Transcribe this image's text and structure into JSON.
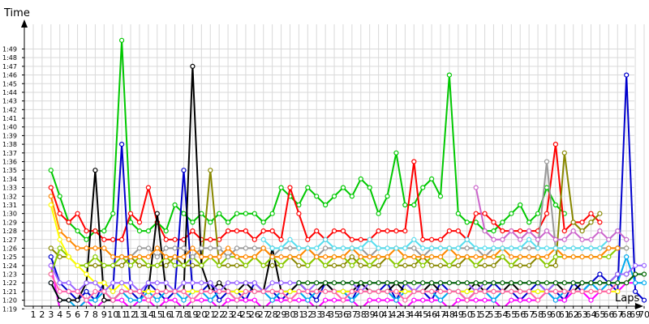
{
  "chart_data": {
    "type": "line",
    "ylabel": "Time",
    "xlabel": "Laps",
    "x": [
      1,
      2,
      3,
      4,
      5,
      6,
      7,
      8,
      9,
      10,
      11,
      12,
      13,
      14,
      15,
      16,
      17,
      18,
      19,
      20,
      21,
      22,
      23,
      24,
      25,
      26,
      27,
      28,
      29,
      30,
      31,
      32,
      33,
      34,
      35,
      36,
      37,
      38,
      39,
      40,
      41,
      42,
      43,
      44,
      45,
      46,
      47,
      48,
      49,
      50,
      51,
      52,
      53,
      54,
      55,
      56,
      57,
      58,
      59,
      60,
      61,
      62,
      63,
      64,
      65,
      66,
      67,
      68,
      69,
      70
    ],
    "xlim": [
      1,
      70
    ],
    "ylim": [
      78,
      114
    ],
    "y_ticks": [
      79,
      80,
      81,
      82,
      83,
      84,
      85,
      86,
      87,
      88,
      89,
      90,
      91,
      92,
      93,
      94,
      95,
      96,
      97,
      98,
      99,
      100,
      101,
      102,
      103,
      104,
      105,
      106,
      107,
      108,
      109
    ],
    "y_tick_labels": [
      "1:19",
      "1:20",
      "1:21",
      "1:22",
      "1:23",
      "1:24",
      "1:25",
      "1:26",
      "1:27",
      "1:28",
      "1:29",
      "1:30",
      "1:31",
      "1:32",
      "1:33",
      "1:34",
      "1:35",
      "1:36",
      "1:37",
      "1:38",
      "1:39",
      "1:40",
      "1:41",
      "1:42",
      "1:43",
      "1:44",
      "1:45",
      "1:46",
      "1:47",
      "1:48",
      "1:49"
    ],
    "x_tick_labels": [
      "1",
      "2",
      "3",
      "4",
      "5",
      "6",
      "7",
      "8",
      "9",
      "10",
      "11",
      "12",
      "13",
      "14",
      "15",
      "16",
      "17",
      "18",
      "19",
      "20",
      "21",
      "22",
      "23",
      "24",
      "25",
      "26",
      "27",
      "28",
      "29",
      "30",
      "31",
      "32",
      "33",
      "34",
      "35",
      "36",
      "37",
      "38",
      "39",
      "40",
      "41",
      "42",
      "43",
      "44",
      "45",
      "46",
      "47",
      "48",
      "49",
      "50",
      "51",
      "52",
      "53",
      "54",
      "55",
      "56",
      "57",
      "58",
      "59",
      "60",
      "61",
      "62",
      "63",
      "64",
      "65",
      "66",
      "67",
      "68",
      "69",
      "70"
    ],
    "grid": true,
    "series": [
      {
        "color": "#00c800",
        "values": [
          null,
          null,
          95,
          92,
          89,
          88,
          87,
          88,
          88,
          90,
          110,
          89,
          88,
          88,
          89,
          88,
          91,
          90,
          89,
          90,
          89,
          90,
          89,
          90,
          90,
          90,
          89,
          90,
          93,
          92,
          91,
          93,
          92,
          91,
          92,
          93,
          92,
          94,
          93,
          90,
          92,
          97,
          91,
          91,
          93,
          94,
          92,
          106,
          90,
          89,
          89,
          88,
          88,
          89,
          90,
          91,
          89,
          90,
          93,
          91,
          90,
          null,
          null,
          null,
          null,
          null,
          null,
          null,
          null,
          null
        ]
      },
      {
        "color": "#ff0000",
        "values": [
          null,
          null,
          93,
          90,
          89,
          90,
          88,
          88,
          87,
          87,
          87,
          90,
          89,
          93,
          89,
          87,
          87,
          87,
          88,
          87,
          87,
          87,
          88,
          88,
          88,
          87,
          88,
          88,
          87,
          93,
          90,
          87,
          88,
          87,
          88,
          88,
          87,
          87,
          87,
          88,
          88,
          88,
          88,
          96,
          87,
          87,
          87,
          88,
          88,
          87,
          90,
          90,
          89,
          88,
          88,
          88,
          88,
          88,
          90,
          98,
          88,
          89,
          89,
          90,
          89,
          null,
          null,
          null,
          null,
          null
        ]
      },
      {
        "color": "#0000cc",
        "values": [
          null,
          null,
          85,
          82,
          81,
          80,
          81,
          80,
          82,
          81,
          98,
          81,
          80,
          82,
          81,
          80,
          81,
          95,
          81,
          81,
          82,
          80,
          81,
          81,
          80,
          82,
          81,
          81,
          80,
          81,
          82,
          81,
          80,
          82,
          81,
          81,
          80,
          82,
          81,
          81,
          82,
          80,
          82,
          81,
          81,
          80,
          82,
          81,
          81,
          80,
          81,
          81,
          82,
          81,
          81,
          80,
          81,
          82,
          81,
          81,
          80,
          82,
          81,
          82,
          83,
          82,
          81,
          106,
          81,
          80
        ]
      },
      {
        "color": "#888800",
        "values": [
          null,
          null,
          86,
          85,
          85,
          84,
          84,
          84,
          84,
          84,
          84,
          85,
          84,
          84,
          84,
          84,
          85,
          84,
          84,
          84,
          95,
          84,
          84,
          84,
          84,
          85,
          84,
          84,
          84,
          85,
          84,
          84,
          85,
          84,
          84,
          84,
          85,
          84,
          84,
          84,
          85,
          84,
          84,
          84,
          85,
          84,
          84,
          84,
          84,
          85,
          84,
          84,
          84,
          85,
          84,
          84,
          84,
          85,
          84,
          84,
          97,
          89,
          88,
          89,
          90,
          null,
          null,
          null,
          null,
          null
        ]
      },
      {
        "color": "#ff00ff",
        "values": [
          null,
          null,
          84,
          79,
          79,
          79,
          80,
          79,
          80,
          80,
          80,
          79,
          80,
          80,
          79,
          80,
          80,
          79,
          80,
          80,
          80,
          79,
          80,
          80,
          80,
          80,
          79,
          80,
          80,
          80,
          80,
          80,
          79,
          80,
          80,
          80,
          80,
          79,
          80,
          80,
          80,
          80,
          79,
          80,
          80,
          80,
          80,
          79,
          80,
          80,
          80,
          80,
          80,
          79,
          80,
          80,
          80,
          80,
          81,
          80,
          80,
          81,
          81,
          80,
          81,
          81,
          81,
          82,
          82,
          null
        ]
      },
      {
        "color": "#00aaee",
        "values": [
          null,
          null,
          82,
          80,
          80,
          79,
          80,
          80,
          81,
          80,
          81,
          80,
          80,
          81,
          80,
          81,
          81,
          80,
          81,
          81,
          80,
          81,
          81,
          80,
          81,
          81,
          81,
          80,
          81,
          81,
          81,
          80,
          81,
          81,
          81,
          81,
          80,
          81,
          81,
          81,
          81,
          80,
          81,
          81,
          81,
          81,
          80,
          81,
          81,
          81,
          81,
          81,
          80,
          81,
          81,
          81,
          81,
          81,
          81,
          80,
          81,
          81,
          81,
          82,
          81,
          82,
          82,
          85,
          82,
          82
        ]
      },
      {
        "color": "#000000",
        "values": [
          null,
          null,
          82,
          80,
          80,
          80,
          82,
          95,
          80,
          80,
          81,
          81,
          81,
          81,
          90,
          81,
          81,
          81,
          107,
          84,
          81,
          82,
          81,
          81,
          82,
          81,
          81,
          86,
          81,
          81,
          82,
          81,
          81,
          82,
          81,
          81,
          81,
          82,
          81,
          81,
          81,
          82,
          81,
          81,
          81,
          82,
          81,
          81,
          81,
          81,
          82,
          81,
          81,
          81,
          82,
          81,
          81,
          81,
          81,
          82,
          81,
          81,
          82,
          82,
          82,
          82,
          83,
          83,
          null,
          null
        ]
      },
      {
        "color": "#88cc00",
        "values": [
          null,
          null,
          83,
          86,
          85,
          84,
          84,
          85,
          84,
          84,
          85,
          84,
          85,
          84,
          84,
          85,
          84,
          84,
          85,
          84,
          85,
          84,
          85,
          85,
          84,
          85,
          84,
          85,
          84,
          85,
          85,
          84,
          85,
          84,
          85,
          85,
          84,
          85,
          84,
          85,
          85,
          84,
          85,
          85,
          84,
          85,
          85,
          84,
          85,
          85,
          84,
          85,
          85,
          85,
          84,
          85,
          85,
          85,
          84,
          85,
          85,
          85,
          85,
          85,
          85,
          85,
          86,
          86,
          null,
          null
        ]
      },
      {
        "color": "#999999",
        "values": [
          null,
          null,
          null,
          null,
          null,
          null,
          null,
          null,
          null,
          null,
          85,
          85,
          86,
          86,
          85,
          86,
          86,
          86,
          85,
          86,
          86,
          86,
          85,
          86,
          86,
          86,
          86,
          85,
          86,
          86,
          86,
          86,
          85,
          86,
          86,
          86,
          86,
          86,
          85,
          86,
          86,
          86,
          86,
          86,
          85,
          86,
          86,
          86,
          86,
          86,
          86,
          85,
          86,
          86,
          86,
          86,
          86,
          86,
          96,
          86,
          86,
          86,
          86,
          86,
          86,
          86,
          86,
          86,
          null,
          null
        ]
      },
      {
        "color": "#ff8800",
        "values": [
          null,
          null,
          92,
          88,
          87,
          86,
          86,
          86,
          86,
          85,
          85,
          85,
          85,
          85,
          86,
          85,
          85,
          85,
          86,
          85,
          85,
          85,
          86,
          85,
          85,
          85,
          86,
          85,
          85,
          85,
          85,
          86,
          85,
          85,
          85,
          85,
          86,
          85,
          85,
          85,
          85,
          86,
          85,
          85,
          85,
          85,
          85,
          86,
          85,
          85,
          85,
          85,
          85,
          86,
          85,
          85,
          85,
          85,
          85,
          86,
          85,
          85,
          85,
          85,
          85,
          86,
          86,
          null,
          null,
          null
        ]
      },
      {
        "color": "#ffff00",
        "values": [
          null,
          null,
          91,
          87,
          85,
          84,
          83,
          82,
          82,
          81,
          82,
          81,
          81,
          81,
          81,
          81,
          81,
          81,
          81,
          81,
          81,
          81,
          81,
          81,
          81,
          81,
          81,
          81,
          81,
          81,
          81,
          81,
          81,
          81,
          81,
          81,
          81,
          81,
          81,
          81,
          81,
          81,
          81,
          81,
          81,
          81,
          81,
          81,
          81,
          81,
          81,
          81,
          81,
          81,
          81,
          81,
          81,
          81,
          81,
          81,
          81,
          81,
          81,
          81,
          81,
          81,
          81,
          null,
          null,
          null
        ]
      },
      {
        "color": "#55ddee",
        "values": [
          null,
          null,
          null,
          null,
          null,
          null,
          null,
          null,
          null,
          null,
          null,
          null,
          null,
          null,
          null,
          null,
          null,
          null,
          null,
          null,
          null,
          null,
          null,
          null,
          null,
          null,
          87,
          86,
          86,
          87,
          86,
          86,
          86,
          87,
          86,
          86,
          86,
          86,
          87,
          86,
          86,
          86,
          86,
          87,
          86,
          86,
          86,
          86,
          86,
          87,
          86,
          86,
          86,
          86,
          86,
          86,
          87,
          86,
          86,
          86,
          86,
          86,
          86,
          86,
          86,
          87,
          88,
          87,
          null,
          null
        ]
      },
      {
        "color": "#9966ff",
        "values": [
          null,
          null,
          84,
          82,
          82,
          81,
          82,
          82,
          81,
          82,
          82,
          82,
          81,
          82,
          82,
          82,
          81,
          82,
          82,
          82,
          82,
          81,
          82,
          82,
          82,
          82,
          81,
          82,
          82,
          82,
          82,
          81,
          82,
          82,
          82,
          82,
          82,
          81,
          82,
          82,
          82,
          82,
          82,
          81,
          82,
          82,
          82,
          82,
          82,
          82,
          81,
          82,
          82,
          82,
          82,
          82,
          82,
          82,
          81,
          82,
          82,
          82,
          82,
          82,
          82,
          82,
          83,
          83,
          84,
          84
        ]
      },
      {
        "color": "#ff66aa",
        "values": [
          null,
          null,
          83,
          81,
          81,
          81,
          80,
          81,
          81,
          80,
          81,
          81,
          81,
          80,
          81,
          81,
          81,
          81,
          80,
          81,
          81,
          81,
          81,
          80,
          81,
          81,
          81,
          81,
          81,
          80,
          81,
          81,
          81,
          81,
          81,
          80,
          81,
          81,
          81,
          81,
          81,
          81,
          80,
          81,
          81,
          81,
          81,
          81,
          81,
          80,
          81,
          81,
          81,
          81,
          81,
          81,
          81,
          80,
          81,
          81,
          81,
          81,
          81,
          81,
          81,
          81,
          82,
          82,
          83,
          null
        ]
      },
      {
        "color": "#006600",
        "values": [
          null,
          null,
          null,
          null,
          null,
          null,
          null,
          null,
          null,
          null,
          null,
          null,
          null,
          null,
          null,
          null,
          null,
          null,
          null,
          null,
          null,
          null,
          null,
          null,
          null,
          null,
          null,
          null,
          null,
          null,
          82,
          82,
          82,
          82,
          82,
          82,
          82,
          82,
          82,
          82,
          82,
          82,
          82,
          82,
          82,
          82,
          82,
          82,
          82,
          82,
          82,
          82,
          82,
          82,
          82,
          82,
          82,
          82,
          82,
          82,
          82,
          82,
          82,
          82,
          82,
          82,
          82,
          82,
          83,
          83
        ]
      },
      {
        "color": "#cc66cc",
        "values": [
          null,
          null,
          null,
          null,
          null,
          null,
          null,
          null,
          null,
          null,
          null,
          null,
          null,
          null,
          null,
          null,
          null,
          null,
          null,
          null,
          null,
          null,
          null,
          null,
          null,
          null,
          null,
          null,
          null,
          null,
          null,
          null,
          null,
          null,
          null,
          null,
          null,
          null,
          null,
          null,
          null,
          null,
          null,
          null,
          null,
          null,
          null,
          null,
          null,
          null,
          93,
          88,
          87,
          87,
          88,
          87,
          88,
          87,
          88,
          87,
          87,
          88,
          87,
          87,
          88,
          87,
          88,
          87,
          null,
          null
        ]
      }
    ]
  }
}
